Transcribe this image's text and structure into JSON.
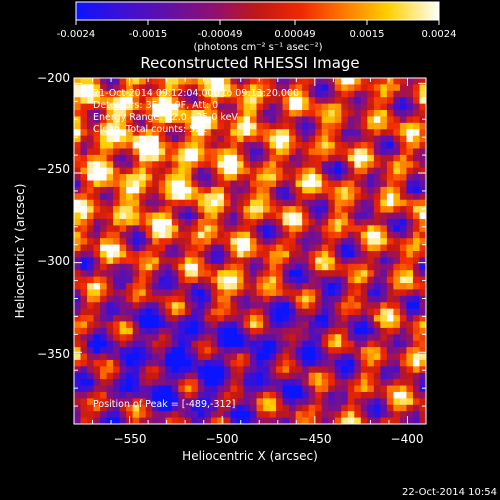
{
  "colorbar": {
    "tick_labels": [
      "-0.0024",
      "-0.0015",
      "-0.00049",
      "0.00049",
      "0.0015",
      "0.0024"
    ],
    "unit_label": "(photons cm⁻² s⁻¹ asec⁻²)",
    "range": [
      -0.0024,
      0.0024
    ]
  },
  "chart_data": {
    "type": "heatmap",
    "title": "Reconstructed RHESSI Image",
    "xlabel": "Heliocentric X (arcsec)",
    "ylabel": "Heliocentric Y (arcsec)",
    "xlim": [
      -580,
      -390
    ],
    "ylim": [
      -390,
      -197
    ],
    "x_ticks": [
      -550,
      -500,
      -450,
      -400
    ],
    "y_ticks": [
      -350,
      -300,
      -250,
      -200
    ],
    "x_tick_labels": [
      "−550",
      "−500",
      "−450",
      "−400"
    ],
    "y_tick_labels": [
      "−350",
      "−300",
      "−250",
      "−200"
    ],
    "annotations": [
      "21-Oct-2014 09:12:04.000 to 09:13:20.000",
      "Detectors: 3F 6F 9F, Att: 0",
      "Energy Range: 12.0 - 25.0 keV",
      "Clean. Total counts: 522"
    ],
    "peak_label": "Position of Peak = [-489,-312]",
    "peak_position": [
      -489,
      -312
    ],
    "colormap": "IDL color table 5 (blue-purple-red-yellow-white)"
  },
  "footer": {
    "timestamp": "22-Oct-2014 10:54"
  }
}
